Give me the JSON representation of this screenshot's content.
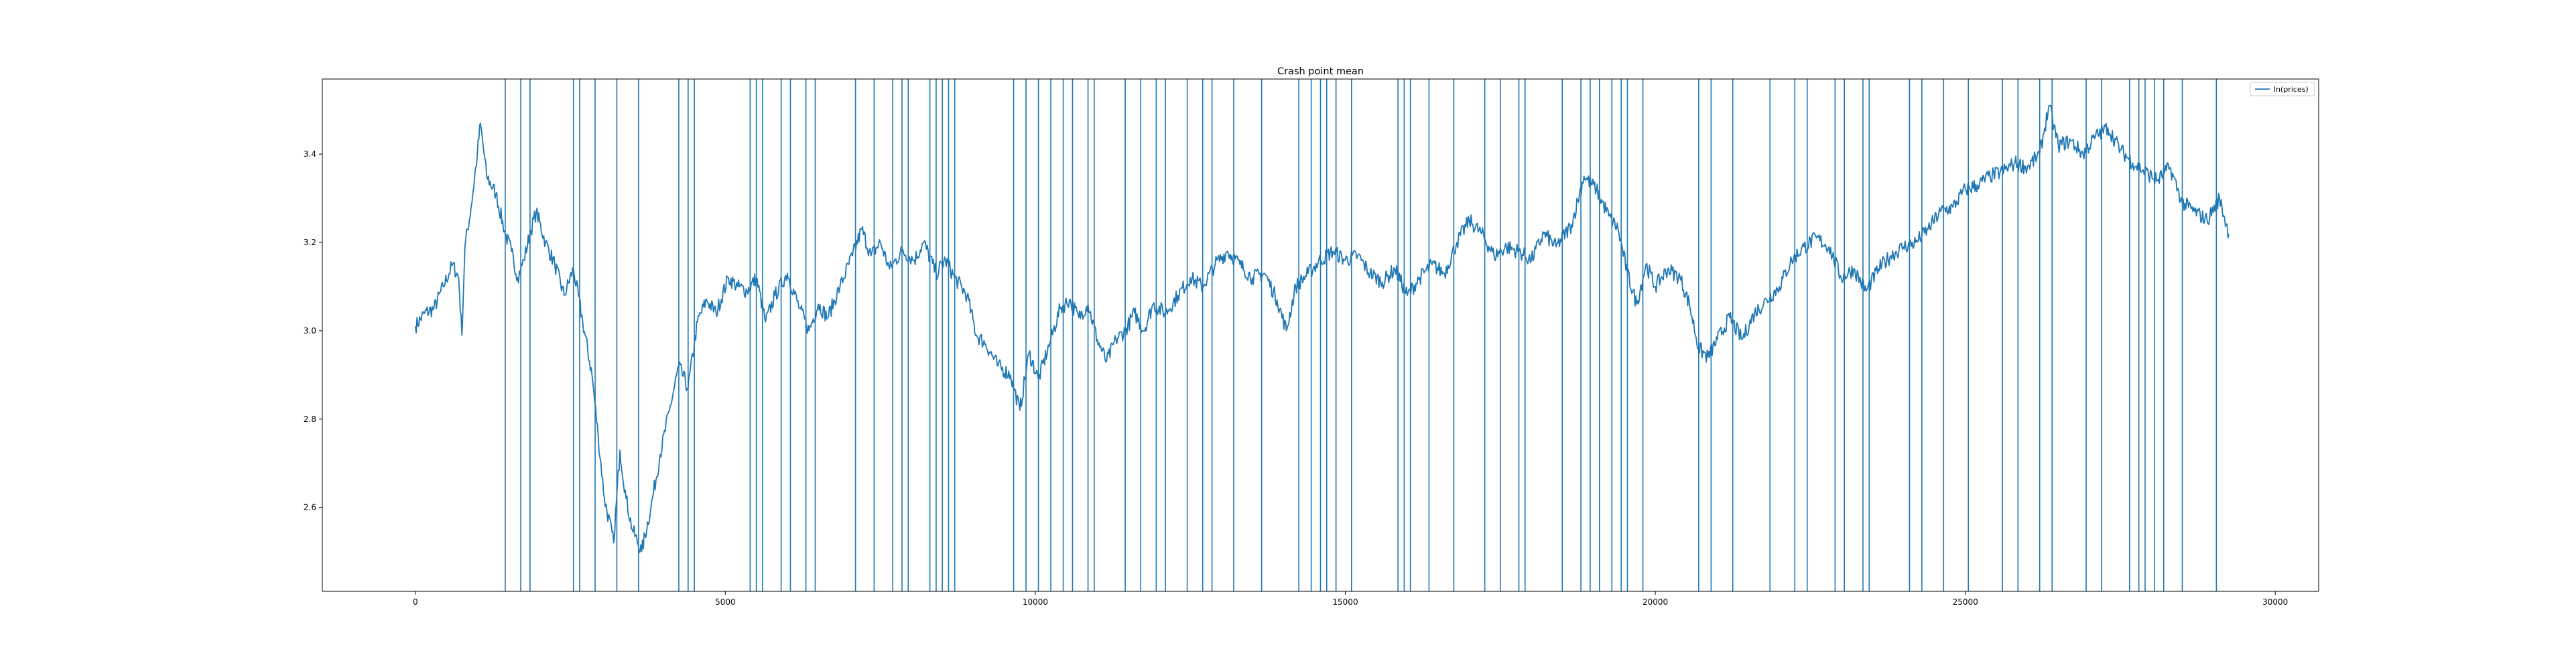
{
  "chart_data": {
    "type": "line",
    "title": "Crash point mean",
    "xlabel": "",
    "ylabel": "",
    "xlim": [
      -1500,
      30700
    ],
    "ylim": [
      2.41,
      3.57
    ],
    "x_ticks": [
      0,
      5000,
      10000,
      15000,
      20000,
      25000,
      30000
    ],
    "x_tick_labels": [
      "0",
      "5000",
      "10000",
      "15000",
      "20000",
      "25000",
      "30000"
    ],
    "y_ticks": [
      2.6,
      2.8,
      3.0,
      3.2,
      3.4
    ],
    "y_tick_labels": [
      "2.6",
      "2.8",
      "3.0",
      "3.2",
      "3.4"
    ],
    "grid": false,
    "legend_position": "upper right",
    "color": "#1f77b4",
    "series": [
      {
        "name": "ln(prices)",
        "points": [
          [
            0,
            3.01
          ],
          [
            150,
            3.04
          ],
          [
            300,
            3.05
          ],
          [
            450,
            3.1
          ],
          [
            600,
            3.15
          ],
          [
            700,
            3.12
          ],
          [
            750,
            2.99
          ],
          [
            800,
            3.19
          ],
          [
            900,
            3.28
          ],
          [
            1000,
            3.4
          ],
          [
            1050,
            3.47
          ],
          [
            1150,
            3.35
          ],
          [
            1300,
            3.31
          ],
          [
            1450,
            3.22
          ],
          [
            1550,
            3.18
          ],
          [
            1650,
            3.12
          ],
          [
            1750,
            3.16
          ],
          [
            1850,
            3.22
          ],
          [
            1950,
            3.27
          ],
          [
            2100,
            3.2
          ],
          [
            2250,
            3.15
          ],
          [
            2400,
            3.08
          ],
          [
            2550,
            3.14
          ],
          [
            2700,
            3.02
          ],
          [
            2850,
            2.9
          ],
          [
            2950,
            2.76
          ],
          [
            3050,
            2.62
          ],
          [
            3200,
            2.52
          ],
          [
            3300,
            2.73
          ],
          [
            3400,
            2.62
          ],
          [
            3500,
            2.55
          ],
          [
            3650,
            2.5
          ],
          [
            3800,
            2.6
          ],
          [
            3950,
            2.72
          ],
          [
            4100,
            2.82
          ],
          [
            4250,
            2.92
          ],
          [
            4400,
            2.87
          ],
          [
            4550,
            3.02
          ],
          [
            4700,
            3.07
          ],
          [
            4850,
            3.04
          ],
          [
            5050,
            3.12
          ],
          [
            5200,
            3.1
          ],
          [
            5350,
            3.09
          ],
          [
            5500,
            3.12
          ],
          [
            5650,
            3.02
          ],
          [
            5800,
            3.08
          ],
          [
            6000,
            3.13
          ],
          [
            6200,
            3.05
          ],
          [
            6350,
            3.0
          ],
          [
            6500,
            3.06
          ],
          [
            6650,
            3.03
          ],
          [
            6850,
            3.1
          ],
          [
            7050,
            3.17
          ],
          [
            7200,
            3.23
          ],
          [
            7350,
            3.17
          ],
          [
            7500,
            3.2
          ],
          [
            7650,
            3.14
          ],
          [
            7850,
            3.18
          ],
          [
            8050,
            3.16
          ],
          [
            8200,
            3.2
          ],
          [
            8400,
            3.13
          ],
          [
            8550,
            3.16
          ],
          [
            8700,
            3.12
          ],
          [
            8900,
            3.08
          ],
          [
            9050,
            2.99
          ],
          [
            9200,
            2.97
          ],
          [
            9400,
            2.92
          ],
          [
            9600,
            2.9
          ],
          [
            9750,
            2.82
          ],
          [
            9900,
            2.95
          ],
          [
            10050,
            2.89
          ],
          [
            10250,
            2.98
          ],
          [
            10400,
            3.05
          ],
          [
            10550,
            3.07
          ],
          [
            10700,
            3.03
          ],
          [
            10850,
            3.06
          ],
          [
            11000,
            2.98
          ],
          [
            11150,
            2.93
          ],
          [
            11300,
            2.98
          ],
          [
            11450,
            3.0
          ],
          [
            11600,
            3.04
          ],
          [
            11750,
            3.0
          ],
          [
            11900,
            3.06
          ],
          [
            12100,
            3.04
          ],
          [
            12300,
            3.08
          ],
          [
            12500,
            3.12
          ],
          [
            12700,
            3.1
          ],
          [
            12900,
            3.15
          ],
          [
            13100,
            3.18
          ],
          [
            13300,
            3.15
          ],
          [
            13500,
            3.12
          ],
          [
            13700,
            3.13
          ],
          [
            13900,
            3.07
          ],
          [
            14050,
            3.0
          ],
          [
            14200,
            3.1
          ],
          [
            14400,
            3.13
          ],
          [
            14600,
            3.16
          ],
          [
            14800,
            3.18
          ],
          [
            15000,
            3.16
          ],
          [
            15200,
            3.17
          ],
          [
            15400,
            3.13
          ],
          [
            15600,
            3.11
          ],
          [
            15800,
            3.14
          ],
          [
            16000,
            3.08
          ],
          [
            16200,
            3.12
          ],
          [
            16400,
            3.15
          ],
          [
            16600,
            3.13
          ],
          [
            16800,
            3.2
          ],
          [
            17000,
            3.25
          ],
          [
            17200,
            3.22
          ],
          [
            17400,
            3.17
          ],
          [
            17600,
            3.19
          ],
          [
            17800,
            3.18
          ],
          [
            18000,
            3.16
          ],
          [
            18200,
            3.22
          ],
          [
            18400,
            3.19
          ],
          [
            18650,
            3.24
          ],
          [
            18850,
            3.35
          ],
          [
            19050,
            3.32
          ],
          [
            19250,
            3.26
          ],
          [
            19400,
            3.23
          ],
          [
            19550,
            3.13
          ],
          [
            19700,
            3.06
          ],
          [
            19850,
            3.15
          ],
          [
            20000,
            3.1
          ],
          [
            20200,
            3.14
          ],
          [
            20400,
            3.12
          ],
          [
            20550,
            3.06
          ],
          [
            20700,
            2.96
          ],
          [
            20850,
            2.94
          ],
          [
            21000,
            2.98
          ],
          [
            21200,
            3.03
          ],
          [
            21400,
            2.98
          ],
          [
            21600,
            3.04
          ],
          [
            21800,
            3.07
          ],
          [
            22000,
            3.1
          ],
          [
            22200,
            3.16
          ],
          [
            22400,
            3.19
          ],
          [
            22600,
            3.21
          ],
          [
            22800,
            3.19
          ],
          [
            23000,
            3.12
          ],
          [
            23200,
            3.14
          ],
          [
            23400,
            3.09
          ],
          [
            23600,
            3.14
          ],
          [
            23800,
            3.17
          ],
          [
            24000,
            3.19
          ],
          [
            24200,
            3.2
          ],
          [
            24400,
            3.23
          ],
          [
            24600,
            3.27
          ],
          [
            24800,
            3.28
          ],
          [
            25000,
            3.32
          ],
          [
            25200,
            3.33
          ],
          [
            25400,
            3.35
          ],
          [
            25600,
            3.36
          ],
          [
            25800,
            3.38
          ],
          [
            26000,
            3.37
          ],
          [
            26200,
            3.4
          ],
          [
            26350,
            3.51
          ],
          [
            26500,
            3.42
          ],
          [
            26700,
            3.43
          ],
          [
            26900,
            3.4
          ],
          [
            27100,
            3.44
          ],
          [
            27300,
            3.46
          ],
          [
            27500,
            3.41
          ],
          [
            27700,
            3.38
          ],
          [
            27900,
            3.36
          ],
          [
            28100,
            3.34
          ],
          [
            28300,
            3.37
          ],
          [
            28500,
            3.29
          ],
          [
            28700,
            3.27
          ],
          [
            28900,
            3.25
          ],
          [
            29100,
            3.3
          ],
          [
            29250,
            3.22
          ]
        ]
      }
    ],
    "vertical_lines": [
      1450,
      1700,
      1850,
      2550,
      2650,
      2900,
      3250,
      3600,
      4250,
      4400,
      4500,
      5400,
      5500,
      5600,
      5900,
      6050,
      6300,
      6450,
      7100,
      7400,
      7700,
      7850,
      7950,
      8300,
      8400,
      8500,
      8600,
      8700,
      9650,
      9850,
      10050,
      10250,
      10450,
      10600,
      10850,
      10950,
      11450,
      11700,
      11950,
      12100,
      12450,
      12700,
      12850,
      13200,
      13650,
      14250,
      14450,
      14600,
      14700,
      14850,
      15100,
      15850,
      15950,
      16050,
      16350,
      16750,
      17250,
      17500,
      17800,
      17900,
      18500,
      18800,
      18950,
      19100,
      19300,
      19450,
      19550,
      19800,
      20700,
      20900,
      21250,
      21850,
      22250,
      22450,
      22900,
      23050,
      23350,
      23450,
      24100,
      24300,
      24650,
      25050,
      25600,
      25850,
      26200,
      26400,
      26950,
      27200,
      27650,
      27800,
      27900,
      28050,
      28200,
      28500,
      29050
    ]
  }
}
